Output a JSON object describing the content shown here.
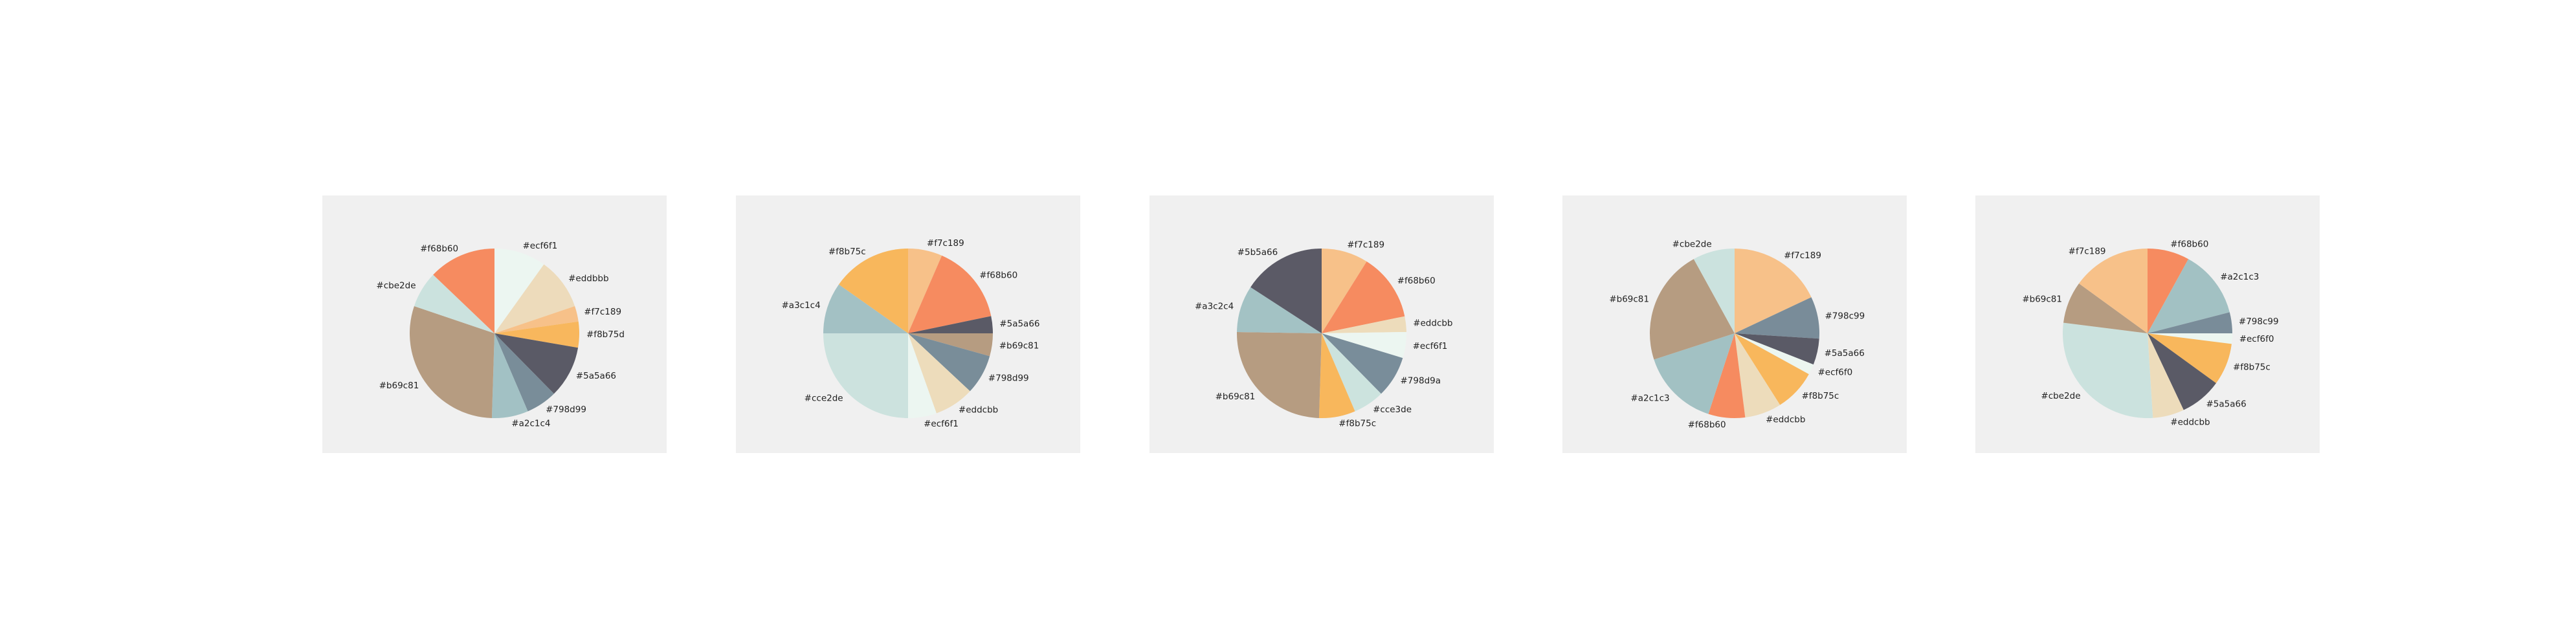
{
  "background": "#f0f0f0",
  "chart_data": [
    {
      "type": "pie",
      "slices": [
        {
          "label": "#ecf6f1",
          "value": 10,
          "color": "#ecf6f1"
        },
        {
          "label": "#eddbbb",
          "value": 10,
          "color": "#eddbbb"
        },
        {
          "label": "#f7c189",
          "value": 3,
          "color": "#f7c189"
        },
        {
          "label": "#f8b75d",
          "value": 5,
          "color": "#f8b75d"
        },
        {
          "label": "#5a5a66",
          "value": 10,
          "color": "#5a5a66"
        },
        {
          "label": "#798d99",
          "value": 6,
          "color": "#798d99"
        },
        {
          "label": "#a2c1c4",
          "value": 7,
          "color": "#a2c1c4"
        },
        {
          "label": "#b69c81",
          "value": 30,
          "color": "#b69c81"
        },
        {
          "label": "#cbe2de",
          "value": 7,
          "color": "#cbe2de"
        },
        {
          "label": "#f68b60",
          "value": 13,
          "color": "#f68b60"
        }
      ]
    },
    {
      "type": "pie",
      "slices": [
        {
          "label": "#f7c189",
          "value": 6,
          "color": "#f7c189"
        },
        {
          "label": "#f68b60",
          "value": 14,
          "color": "#f68b60"
        },
        {
          "label": "#5a5a66",
          "value": 3,
          "color": "#5a5a66"
        },
        {
          "label": "#b69c81",
          "value": 4,
          "color": "#b69c81"
        },
        {
          "label": "#798d99",
          "value": 7,
          "color": "#798d99"
        },
        {
          "label": "#eddcbb",
          "value": 7,
          "color": "#eddcbb"
        },
        {
          "label": "#ecf6f1",
          "value": 5,
          "color": "#ecf6f1"
        },
        {
          "label": "#cce2de",
          "value": 23,
          "color": "#cce2de"
        },
        {
          "label": "#a3c1c4",
          "value": 9,
          "color": "#a3c1c4"
        },
        {
          "label": "#f8b75c",
          "value": 14,
          "color": "#f8b75c"
        }
      ]
    },
    {
      "type": "pie",
      "slices": [
        {
          "label": "#f7c189",
          "value": 9,
          "color": "#f7c189"
        },
        {
          "label": "#f68b60",
          "value": 13,
          "color": "#f68b60"
        },
        {
          "label": "#eddcbb",
          "value": 3,
          "color": "#eddcbb"
        },
        {
          "label": "#ecf6f1",
          "value": 5,
          "color": "#ecf6f1"
        },
        {
          "label": "#798d9a",
          "value": 8,
          "color": "#798d9a"
        },
        {
          "label": "#cce3de",
          "value": 6,
          "color": "#cce3de"
        },
        {
          "label": "#f8b75c",
          "value": 7,
          "color": "#f8b75c"
        },
        {
          "label": "#b69c81",
          "value": 25,
          "color": "#b69c81"
        },
        {
          "label": "#a3c2c4",
          "value": 9,
          "color": "#a3c2c4"
        },
        {
          "label": "#5b5a66",
          "value": 16,
          "color": "#5b5a66"
        }
      ]
    },
    {
      "type": "pie",
      "slices": [
        {
          "label": "#f7c189",
          "value": 18,
          "color": "#f7c189"
        },
        {
          "label": "#798c99",
          "value": 8,
          "color": "#798c99"
        },
        {
          "label": "#5a5a66",
          "value": 5,
          "color": "#5a5a66"
        },
        {
          "label": "#ecf6f0",
          "value": 2,
          "color": "#ecf6f0"
        },
        {
          "label": "#f8b75c",
          "value": 8,
          "color": "#f8b75c"
        },
        {
          "label": "#eddcbb",
          "value": 7,
          "color": "#eddcbb"
        },
        {
          "label": "#f68b60",
          "value": 7,
          "color": "#f68b60"
        },
        {
          "label": "#a2c1c3",
          "value": 15,
          "color": "#a2c1c3"
        },
        {
          "label": "#b69c81",
          "value": 22,
          "color": "#b69c81"
        },
        {
          "label": "#cbe2de",
          "value": 8,
          "color": "#cbe2de"
        }
      ]
    },
    {
      "type": "pie",
      "slices": [
        {
          "label": "#f68b60",
          "value": 8,
          "color": "#f68b60"
        },
        {
          "label": "#a2c1c3",
          "value": 13,
          "color": "#a2c1c3"
        },
        {
          "label": "#798c99",
          "value": 4,
          "color": "#798c99"
        },
        {
          "label": "#ecf6f0",
          "value": 2,
          "color": "#ecf6f0"
        },
        {
          "label": "#f8b75c",
          "value": 8,
          "color": "#f8b75c"
        },
        {
          "label": "#5a5a66",
          "value": 8,
          "color": "#5a5a66"
        },
        {
          "label": "#eddcbb",
          "value": 6,
          "color": "#eddcbb"
        },
        {
          "label": "#cbe2de",
          "value": 28,
          "color": "#cbe2de"
        },
        {
          "label": "#b69c81",
          "value": 8,
          "color": "#b69c81"
        },
        {
          "label": "#f7c189",
          "value": 15,
          "color": "#f7c189"
        }
      ]
    }
  ]
}
